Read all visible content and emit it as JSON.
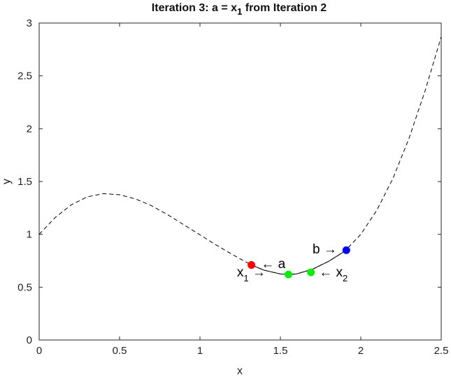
{
  "chart_data": {
    "type": "line",
    "title": {
      "main": "Iteration 3: a = x",
      "sub": "1",
      "rest": " from Iteration 2"
    },
    "xlabel": "x",
    "ylabel": "y",
    "xlim": [
      0,
      2.5
    ],
    "ylim": [
      0,
      3
    ],
    "xticks": [
      0,
      0.5,
      1,
      1.5,
      2,
      2.5
    ],
    "xtick_labels": [
      "0",
      "0.5",
      "1",
      "1.5",
      "2",
      "2.5"
    ],
    "yticks": [
      0,
      0.5,
      1,
      1.5,
      2,
      2.5,
      3
    ],
    "ytick_labels": [
      "0",
      "0.5",
      "1",
      "1.5",
      "2",
      "2.5",
      "3"
    ],
    "grid": false,
    "series": [
      {
        "style": "dashed",
        "x": [
          0,
          0.1,
          0.2,
          0.3,
          0.4,
          0.5,
          0.6,
          0.7,
          0.8,
          0.9,
          1.0,
          1.1,
          1.2,
          1.32,
          1.4,
          1.5,
          1.55,
          1.6,
          1.7,
          1.8,
          1.9,
          2.0,
          2.1,
          2.2,
          2.3,
          2.4,
          2.5
        ],
        "y": [
          1.0,
          1.16,
          1.28,
          1.355,
          1.385,
          1.375,
          1.335,
          1.27,
          1.185,
          1.09,
          0.995,
          0.9,
          0.81,
          0.71,
          0.66,
          0.625,
          0.62,
          0.625,
          0.67,
          0.745,
          0.84,
          1.0,
          1.23,
          1.53,
          1.91,
          2.36,
          2.87
        ]
      },
      {
        "style": "solid",
        "x": [
          1.32,
          1.4,
          1.5,
          1.55,
          1.6,
          1.7,
          1.8,
          1.91
        ],
        "y": [
          0.71,
          0.66,
          0.625,
          0.62,
          0.625,
          0.67,
          0.745,
          0.85
        ]
      }
    ],
    "points": [
      {
        "x": 1.32,
        "y": 0.71,
        "color": "#ff0000"
      },
      {
        "x": 1.55,
        "y": 0.62,
        "color": "#00ee00"
      },
      {
        "x": 1.69,
        "y": 0.64,
        "color": "#00ee00"
      },
      {
        "x": 1.91,
        "y": 0.85,
        "color": "#0000ff"
      }
    ],
    "annotations": [
      {
        "x": 1.38,
        "y": 0.68,
        "text": "← a",
        "sub": "",
        "anchor": "start"
      },
      {
        "x": 1.23,
        "y": 0.6,
        "text": "x",
        "sub": "1",
        "arrow": " →",
        "anchor": "start"
      },
      {
        "x": 1.74,
        "y": 0.6,
        "text": "← x",
        "sub": "2",
        "anchor": "start"
      },
      {
        "x": 1.7,
        "y": 0.82,
        "text": "b →",
        "sub": "",
        "anchor": "start"
      }
    ]
  }
}
